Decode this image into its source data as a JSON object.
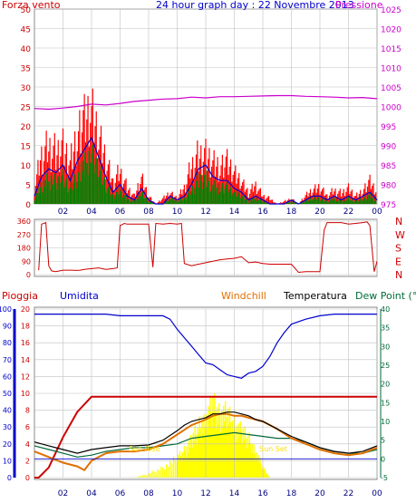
{
  "colors": {
    "wind": "#ff0000",
    "gust_avg": "#0000cc",
    "wind_green": "#008000",
    "pressure": "#cc00cc",
    "direction": "#cc0000",
    "rain": "#cc0000",
    "humidity": "#0000cc",
    "windchill": "#e07000",
    "temperature": "#000000",
    "dewpoint": "#006a3a",
    "sun": "#ffff00",
    "grid": "#c0c0c0"
  },
  "chart_data": [
    {
      "type": "line",
      "title": "24 hour graph day : 22 Novembre 2013",
      "ylabel_left": "Forza vento",
      "ylabel_right": "Pressione",
      "ylim_left": [
        0,
        50
      ],
      "ylim_right": [
        975,
        1025
      ],
      "yticks_left": [
        "0",
        "5",
        "10",
        "15",
        "20",
        "25",
        "30",
        "35",
        "40",
        "45",
        "50"
      ],
      "yticks_right": [
        "975",
        "980",
        "985",
        "990",
        "995",
        "1000",
        "1005",
        "1010",
        "1015",
        "1020",
        "1025"
      ],
      "xticks": [
        "02",
        "04",
        "06",
        "08",
        "10",
        "12",
        "14",
        "16",
        "18",
        "20",
        "22",
        "00"
      ],
      "series": [
        {
          "key": "pressure",
          "x": [
            0,
            1,
            2,
            3,
            4,
            5,
            6,
            7,
            8,
            9,
            10,
            11,
            12,
            13,
            14,
            15,
            16,
            17,
            18,
            19,
            20,
            21,
            22,
            23,
            24
          ],
          "values": [
            999.5,
            999.3,
            999.6,
            1000,
            1000.6,
            1000.4,
            1000.8,
            1001.3,
            1001.6,
            1001.9,
            1002,
            1002.4,
            1002.2,
            1002.5,
            1002.5,
            1002.6,
            1002.7,
            1002.8,
            1002.8,
            1002.6,
            1002.5,
            1002.4,
            1002.2,
            1002.3,
            1002
          ]
        },
        {
          "key": "wind_max",
          "x": [
            0,
            0.5,
            1,
            1.5,
            2,
            2.5,
            3,
            3.5,
            4,
            4.5,
            5,
            5.5,
            6,
            6.5,
            7,
            7.5,
            8,
            8.5,
            9,
            9.5,
            10,
            10.5,
            11,
            11.5,
            12,
            12.5,
            13,
            13.5,
            14,
            14.5,
            15,
            15.5,
            16,
            16.5,
            17,
            17.5,
            18,
            18.5,
            19,
            19.5,
            20,
            20.5,
            21,
            21.5,
            22,
            22.5,
            23,
            23.5,
            24
          ],
          "values": [
            6,
            18,
            21,
            19,
            22,
            16,
            26,
            30,
            33,
            24,
            16,
            8,
            12,
            6,
            3,
            10,
            3,
            0,
            2,
            4,
            2,
            6,
            14,
            18,
            19,
            16,
            14,
            15,
            11,
            8,
            4,
            7,
            3,
            2,
            0,
            1,
            2,
            0,
            3,
            5,
            6,
            3,
            5,
            4,
            6,
            3,
            5,
            8,
            4
          ]
        },
        {
          "key": "wind_avg",
          "x": [
            0,
            0.5,
            1,
            1.5,
            2,
            2.5,
            3,
            3.5,
            4,
            4.5,
            5,
            5.5,
            6,
            6.5,
            7,
            7.5,
            8,
            8.5,
            9,
            9.5,
            10,
            10.5,
            11,
            11.5,
            12,
            12.5,
            13,
            13.5,
            14,
            14.5,
            15,
            15.5,
            16,
            16.5,
            17,
            17.5,
            18,
            18.5,
            19,
            19.5,
            20,
            20.5,
            21,
            21.5,
            22,
            22.5,
            23,
            23.5,
            24
          ],
          "values": [
            2,
            7,
            9,
            8,
            10,
            6,
            11,
            14,
            17,
            12,
            7,
            3,
            5,
            2,
            1,
            4,
            1,
            0,
            0,
            2,
            1,
            2,
            5,
            9,
            10,
            7,
            6,
            6,
            4,
            3,
            1,
            2,
            1,
            0,
            0,
            0,
            1,
            0,
            1,
            2,
            2,
            1,
            2,
            1,
            2,
            1,
            2,
            3,
            1
          ]
        }
      ]
    },
    {
      "type": "scatter",
      "ylabel_right": [
        "N",
        "W",
        "S",
        "E",
        "N"
      ],
      "yticks_left": [
        "0",
        "90",
        "180",
        "270",
        "360"
      ],
      "ylim": [
        0,
        360
      ],
      "series": [
        {
          "key": "direction",
          "x": [
            0.3,
            0.5,
            0.8,
            1,
            1.2,
            1.5,
            2,
            2.5,
            3,
            3.2,
            3.5,
            4,
            4.5,
            5,
            5.5,
            5.8,
            6,
            6.3,
            6.5,
            7,
            7.5,
            8,
            8.3,
            8.5,
            9,
            9.5,
            10,
            10.3,
            10.5,
            11,
            11.5,
            12,
            12.5,
            13,
            13.5,
            14,
            14.5,
            15,
            15.5,
            16,
            16.5,
            17,
            17.5,
            18,
            18.5,
            19,
            19.5,
            20,
            20.3,
            20.5,
            21,
            21.5,
            22,
            22.5,
            23,
            23.3,
            23.5,
            23.8,
            24
          ],
          "values": [
            30,
            340,
            350,
            60,
            25,
            20,
            30,
            30,
            28,
            30,
            35,
            40,
            45,
            35,
            40,
            45,
            330,
            345,
            340,
            340,
            340,
            340,
            50,
            345,
            340,
            345,
            340,
            345,
            75,
            60,
            70,
            80,
            90,
            100,
            105,
            110,
            120,
            80,
            85,
            75,
            70,
            70,
            70,
            70,
            15,
            20,
            20,
            20,
            300,
            350,
            350,
            350,
            340,
            345,
            350,
            355,
            330,
            20,
            90
          ]
        }
      ]
    },
    {
      "type": "line",
      "legend": [
        "Pioggia",
        "Umidita",
        "Windchill",
        "Temperatura",
        "Dew Point (°C"
      ],
      "annotations": [
        "Sun Rise",
        "Sun Set"
      ],
      "ylim_left": [
        0,
        100
      ],
      "ylim_right": [
        -5,
        40
      ],
      "yticks_left_outer": [
        "0",
        "10",
        "20",
        "30",
        "40",
        "50",
        "60",
        "70",
        "80",
        "90",
        "100"
      ],
      "yticks_left_inner": [
        "0",
        "2",
        "4",
        "6",
        "8",
        "10",
        "12",
        "14",
        "16",
        "18",
        "20"
      ],
      "yticks_right": [
        "-5",
        "0",
        "5",
        "10",
        "15",
        "20",
        "25",
        "30",
        "35",
        "40"
      ],
      "xticks": [
        "02",
        "04",
        "06",
        "08",
        "10",
        "12",
        "14",
        "16",
        "18",
        "20",
        "22",
        "00"
      ],
      "series": [
        {
          "key": "humidity",
          "x": [
            0,
            1,
            2,
            3,
            4,
            5,
            6,
            7,
            8,
            9,
            9.5,
            10,
            10.5,
            11,
            11.5,
            12,
            12.5,
            13,
            13.5,
            14,
            14.5,
            15,
            15.5,
            16,
            16.5,
            17,
            17.5,
            18,
            19,
            20,
            21,
            22,
            23,
            24
          ],
          "values": [
            97,
            97,
            97,
            97,
            97,
            97,
            96,
            96,
            96,
            96,
            94,
            88,
            83,
            78,
            73,
            68,
            67,
            64,
            61,
            60,
            59,
            62,
            63,
            66,
            72,
            80,
            86,
            91,
            94,
            96,
            97,
            97,
            97,
            97
          ]
        },
        {
          "key": "rain",
          "x": [
            0,
            0.3,
            1,
            2,
            3,
            4,
            5,
            6,
            7,
            8,
            9,
            10,
            11,
            12,
            13,
            14,
            15,
            16,
            17,
            18,
            19,
            20,
            21,
            22,
            23,
            24
          ],
          "values": [
            0,
            0,
            1.2,
            4.8,
            7.8,
            9.6,
            9.6,
            9.6,
            9.6,
            9.6,
            9.6,
            9.6,
            9.6,
            9.6,
            9.6,
            9.6,
            9.6,
            9.6,
            9.6,
            9.6,
            9.6,
            9.6,
            9.6,
            9.6,
            9.6,
            9.6
          ]
        },
        {
          "key": "temperature",
          "x": [
            0,
            1,
            2,
            3,
            4,
            5,
            6,
            7,
            8,
            9,
            10,
            10.5,
            11,
            11.5,
            12,
            12.5,
            13,
            13.5,
            14,
            14.5,
            15,
            15.5,
            16,
            16.5,
            17,
            18,
            19,
            20,
            21,
            22,
            23,
            24
          ],
          "values": [
            4.5,
            3.5,
            2.5,
            1.5,
            2.5,
            3,
            3.5,
            3.5,
            3.7,
            5,
            7.5,
            9,
            10,
            10.5,
            11,
            12,
            12,
            12.5,
            12.5,
            12,
            11.5,
            10.5,
            10,
            9,
            8,
            6,
            4.5,
            3,
            2,
            1.5,
            2,
            3.5
          ]
        },
        {
          "key": "windchill",
          "x": [
            0,
            1,
            2,
            3,
            3.5,
            4,
            5,
            6,
            7,
            8,
            9,
            10,
            11,
            12,
            12.5,
            13,
            13.5,
            14,
            14.5,
            15,
            16,
            17,
            18,
            19,
            20,
            21,
            22,
            23,
            24
          ],
          "values": [
            2,
            0.5,
            -1,
            -2,
            -3,
            -0.5,
            1.5,
            2,
            2,
            2.5,
            4,
            6.5,
            9,
            10.5,
            11.5,
            12,
            12,
            11.5,
            11.5,
            11,
            10,
            8,
            5.5,
            4,
            2.5,
            1.5,
            1,
            1.5,
            3
          ]
        },
        {
          "key": "dewpoint",
          "x": [
            0,
            1,
            2,
            3,
            4,
            5,
            6,
            7,
            8,
            9,
            10,
            11,
            12,
            13,
            14,
            15,
            16,
            17,
            18,
            19,
            20,
            21,
            22,
            23,
            24
          ],
          "values": [
            3.5,
            2.5,
            1.5,
            0.5,
            1,
            2,
            2.5,
            3,
            3,
            3.5,
            4,
            5.5,
            6,
            6.5,
            7,
            6.5,
            6,
            5.5,
            5.5,
            4.5,
            3,
            2,
            1.5,
            1.5,
            2.5
          ]
        },
        {
          "key": "sun",
          "x": [
            7,
            8,
            9,
            10,
            10.5,
            11,
            11.5,
            12,
            12.5,
            13,
            13.5,
            14,
            14.5,
            15,
            15.5,
            16,
            16.5
          ],
          "values": [
            0,
            3,
            8,
            15,
            20,
            28,
            38,
            45,
            55,
            50,
            48,
            40,
            35,
            30,
            20,
            8,
            0
          ]
        }
      ]
    }
  ]
}
